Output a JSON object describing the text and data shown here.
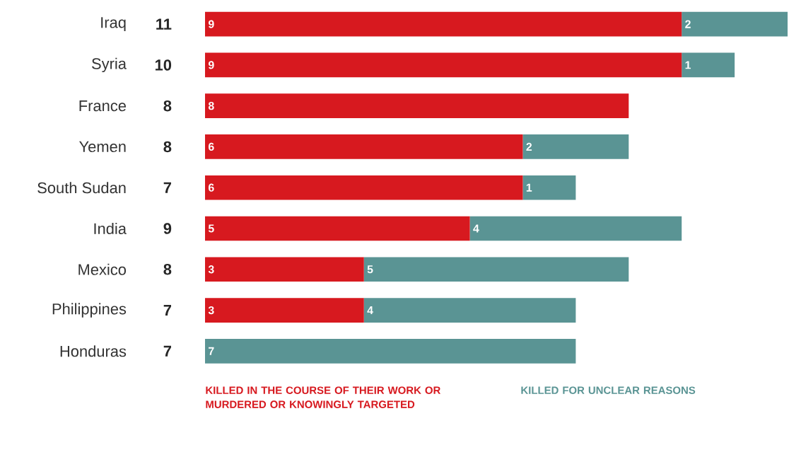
{
  "chart_data": {
    "type": "bar",
    "orientation": "horizontal",
    "stacked": true,
    "legend": "bottom",
    "categories": [
      "Iraq",
      "Syria",
      "France",
      "Yemen",
      "South Sudan",
      "India",
      "Mexico",
      "Philippines",
      "Honduras"
    ],
    "totals": [
      "11",
      "10",
      "8",
      "8",
      "7",
      "9",
      "8",
      "7",
      "7"
    ],
    "series": [
      {
        "name": "KILLED IN THE COURSE OF THEIR WORK OR MURDERED OR KNOWINGLY TARGETED",
        "color": "#d7191f",
        "values": [
          9,
          9,
          8,
          6,
          6,
          5,
          3,
          3,
          0
        ],
        "value_labels": [
          "9",
          "9",
          "8",
          "6",
          "6",
          "5",
          "3",
          "3",
          null
        ]
      },
      {
        "name": "KILLED FOR UNCLEAR REASONS",
        "color": "#5a9494",
        "values": [
          2,
          1,
          0,
          2,
          1,
          4,
          5,
          4,
          7
        ],
        "value_labels": [
          "2",
          "1",
          null,
          "2",
          "1",
          "4",
          "5",
          "4",
          "7"
        ]
      }
    ]
  }
}
